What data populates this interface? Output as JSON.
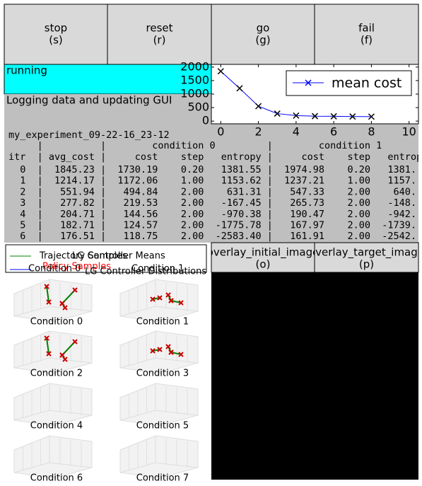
{
  "buttons": [
    {
      "label": "stop",
      "key": "(s)"
    },
    {
      "label": "reset",
      "key": "(r)"
    },
    {
      "label": "go",
      "key": "(g)"
    },
    {
      "label": "fail",
      "key": "(f)"
    }
  ],
  "status": {
    "state": "running",
    "message": "Logging data and updating GUI"
  },
  "cost_plot": {
    "type": "line",
    "legend": "mean cost",
    "color": "#0000ff",
    "x": [
      0,
      1,
      2,
      3,
      4,
      5,
      6,
      7,
      8
    ],
    "values": [
      1845,
      1214,
      552,
      278,
      205,
      183,
      177,
      170,
      165
    ],
    "xlim": [
      -0.5,
      10.5
    ],
    "xticks": [
      0,
      2,
      4,
      6,
      8,
      10
    ],
    "ylim": [
      -100,
      2100
    ],
    "yticks": [
      0,
      500,
      1000,
      1500,
      2000
    ]
  },
  "log": {
    "experiment": "my_experiment_09-22-16_23-12",
    "header": [
      "     |          |        condition 0         |        condition 1",
      "itr  | avg_cost |     cost    step   entropy |     cost    step   entrop"
    ],
    "rows": [
      "  0  |  1845.23 |  1730.19    0.20   1381.55 |  1974.98    0.20   1381.",
      "  1  |  1214.17 |  1172.06    1.00   1153.62 |  1237.21    1.00   1157.",
      "  2  |   551.94 |   494.84    2.00    631.31 |   547.33    2.00    640.",
      "  3  |   277.82 |   219.53    2.00   -167.45 |   265.73    2.00   -148.",
      "  4  |   204.71 |   144.56    2.00   -970.38 |   190.47    2.00   -942.",
      "  5  |   182.71 |   124.57    2.00  -1775.78 |   167.97    2.00  -1739.",
      "  6  |   176.51 |   118.75    2.00  -2583.40 |   161.91    2.00  -2542."
    ]
  },
  "trajectory": {
    "legend": [
      "Trajectory Samples",
      "Policy Samples",
      "LG Controller Means",
      "Condition 0",
      "Condition 1",
      "LG Controller Distributions"
    ],
    "subplots": [
      "Condition 0",
      "Condition 1",
      "Condition 2",
      "Condition 3",
      "Condition 4",
      "Condition 5",
      "Condition 6",
      "Condition 7"
    ]
  },
  "image_buttons": [
    {
      "label": "overlay_initial_image",
      "key": "(o)"
    },
    {
      "label": "overlay_target_image",
      "key": "(p)"
    }
  ]
}
